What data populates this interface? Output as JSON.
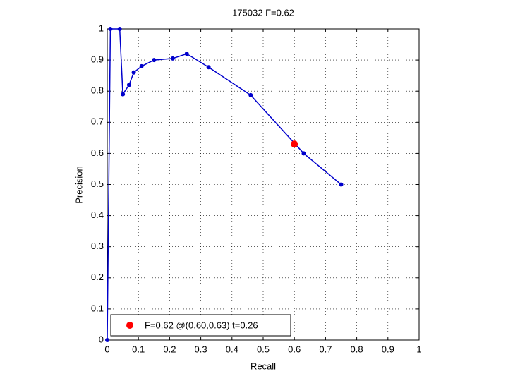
{
  "chart_data": {
    "type": "line",
    "title": "175032 F=0.62",
    "x_label": "Recall",
    "y_label": "Precision",
    "series": [
      {
        "color": "#0000cc",
        "x": [
          0,
          0.01,
          0.04,
          0.05,
          0.07,
          0.085,
          0.11,
          0.15,
          0.21,
          0.255,
          0.325,
          0.46,
          0.63,
          0.75
        ],
        "values": [
          0,
          1,
          1,
          0.79,
          0.82,
          0.86,
          0.88,
          0.9,
          0.905,
          0.92,
          0.877,
          0.787,
          0.6,
          0.5
        ]
      },
      {
        "name": "F=0.62 @(0.60,0.63) t=0.26",
        "color": "#ff0000",
        "x": [
          0.6
        ],
        "values": [
          0.63
        ]
      }
    ],
    "xlim": [
      0,
      1
    ],
    "ylim": [
      0,
      1
    ],
    "xticks": [
      0,
      0.1,
      0.2,
      0.3,
      0.4,
      0.5,
      0.6,
      0.7,
      0.8,
      0.9,
      1
    ],
    "yticks": [
      0,
      0.1,
      0.2,
      0.3,
      0.4,
      0.5,
      0.6,
      0.7,
      0.8,
      0.9,
      1
    ],
    "grid": true,
    "legend": "lower left"
  }
}
